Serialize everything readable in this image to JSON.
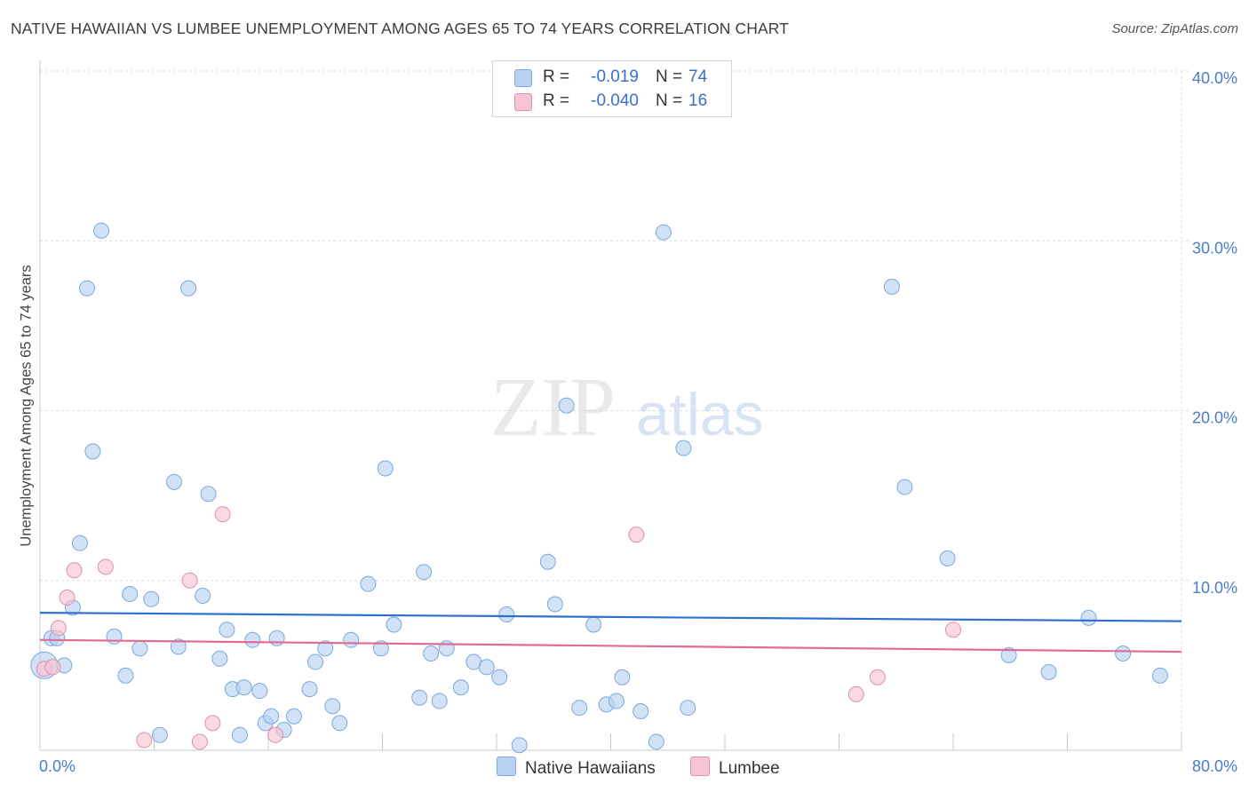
{
  "title": "NATIVE HAWAIIAN VS LUMBEE UNEMPLOYMENT AMONG AGES 65 TO 74 YEARS CORRELATION CHART",
  "source": "Source: ZipAtlas.com",
  "watermark": {
    "zip": "ZIP",
    "atlas": "atlas"
  },
  "colors": {
    "blue_fill": "#b8d2f2",
    "blue_stroke": "#7da7dd",
    "blue_line": "#2f6fcf",
    "pink_fill": "#f6c4d3",
    "pink_stroke": "#e28fab",
    "pink_line": "#e06b94",
    "grid": "#dddddd",
    "axis_text": "#4a7cc9"
  },
  "legend": {
    "rows": [
      {
        "r_label": "R =",
        "r_value": "-0.019",
        "n_label": "N =",
        "n_value": "74"
      },
      {
        "r_label": "R =",
        "r_value": "-0.040",
        "n_label": "N =",
        "n_value": "16"
      }
    ]
  },
  "bottom_legend": {
    "series1": "Native Hawaiians",
    "series2": "Lumbee"
  },
  "chart_data": {
    "type": "scatter",
    "title": "NATIVE HAWAIIAN VS LUMBEE UNEMPLOYMENT AMONG AGES 65 TO 74 YEARS CORRELATION CHART",
    "xlabel": "",
    "ylabel": "Unemployment Among Ages 65 to 74 years",
    "xlim": [
      0,
      80
    ],
    "ylim": [
      0,
      40
    ],
    "x_tick_labels": [
      "0.0%",
      "80.0%"
    ],
    "y_ticks": [
      10,
      20,
      30,
      40
    ],
    "y_tick_labels": [
      "10.0%",
      "20.0%",
      "30.0%",
      "40.0%"
    ],
    "grid": true,
    "legend_position": "top-center",
    "series": [
      {
        "name": "Native Hawaiians",
        "stats": {
          "R": -0.019,
          "N": 74
        },
        "trend": {
          "y_at_x0": 8.1,
          "y_at_x80": 7.6
        },
        "points": [
          [
            0.3,
            5.0
          ],
          [
            0.8,
            6.6
          ],
          [
            1.2,
            6.6
          ],
          [
            1.7,
            5.0
          ],
          [
            2.3,
            8.4
          ],
          [
            2.8,
            12.2
          ],
          [
            3.3,
            27.2
          ],
          [
            3.7,
            17.6
          ],
          [
            4.3,
            30.6
          ],
          [
            5.2,
            6.7
          ],
          [
            6.0,
            4.4
          ],
          [
            6.3,
            9.2
          ],
          [
            7.0,
            6.0
          ],
          [
            7.8,
            8.9
          ],
          [
            8.4,
            0.9
          ],
          [
            9.4,
            15.8
          ],
          [
            9.7,
            6.1
          ],
          [
            10.4,
            27.2
          ],
          [
            11.4,
            9.1
          ],
          [
            11.8,
            15.1
          ],
          [
            12.6,
            5.4
          ],
          [
            13.1,
            7.1
          ],
          [
            13.5,
            3.6
          ],
          [
            14.0,
            0.9
          ],
          [
            14.3,
            3.7
          ],
          [
            14.9,
            6.5
          ],
          [
            15.4,
            3.5
          ],
          [
            15.8,
            1.6
          ],
          [
            16.2,
            2.0
          ],
          [
            16.6,
            6.6
          ],
          [
            17.1,
            1.2
          ],
          [
            17.8,
            2.0
          ],
          [
            18.9,
            3.6
          ],
          [
            19.3,
            5.2
          ],
          [
            20.0,
            6.0
          ],
          [
            20.5,
            2.6
          ],
          [
            21.0,
            1.6
          ],
          [
            21.8,
            6.5
          ],
          [
            23.0,
            9.8
          ],
          [
            23.9,
            6.0
          ],
          [
            24.2,
            16.6
          ],
          [
            24.8,
            7.4
          ],
          [
            26.6,
            3.1
          ],
          [
            26.9,
            10.5
          ],
          [
            27.4,
            5.7
          ],
          [
            28.0,
            2.9
          ],
          [
            28.5,
            6.0
          ],
          [
            29.5,
            3.7
          ],
          [
            30.4,
            5.2
          ],
          [
            31.3,
            4.9
          ],
          [
            32.2,
            4.3
          ],
          [
            32.7,
            8.0
          ],
          [
            33.6,
            0.3
          ],
          [
            35.6,
            11.1
          ],
          [
            36.1,
            8.6
          ],
          [
            36.9,
            20.3
          ],
          [
            37.8,
            2.5
          ],
          [
            38.8,
            7.4
          ],
          [
            39.7,
            2.7
          ],
          [
            40.4,
            2.9
          ],
          [
            40.8,
            4.3
          ],
          [
            42.1,
            2.3
          ],
          [
            43.2,
            0.5
          ],
          [
            43.7,
            30.5
          ],
          [
            45.1,
            17.8
          ],
          [
            45.4,
            2.5
          ],
          [
            59.7,
            27.3
          ],
          [
            60.6,
            15.5
          ],
          [
            63.6,
            11.3
          ],
          [
            67.9,
            5.6
          ],
          [
            70.7,
            4.6
          ],
          [
            73.5,
            7.8
          ],
          [
            75.9,
            5.7
          ],
          [
            78.5,
            4.4
          ]
        ]
      },
      {
        "name": "Lumbee",
        "stats": {
          "R": -0.04,
          "N": 16
        },
        "trend": {
          "y_at_x0": 6.5,
          "y_at_x80": 5.8
        },
        "points": [
          [
            0.3,
            4.8
          ],
          [
            0.9,
            4.9
          ],
          [
            1.3,
            7.2
          ],
          [
            1.9,
            9.0
          ],
          [
            2.4,
            10.6
          ],
          [
            4.6,
            10.8
          ],
          [
            7.3,
            0.6
          ],
          [
            10.5,
            10.0
          ],
          [
            11.2,
            0.5
          ],
          [
            12.1,
            1.6
          ],
          [
            12.8,
            13.9
          ],
          [
            16.5,
            0.9
          ],
          [
            41.8,
            12.7
          ],
          [
            57.2,
            3.3
          ],
          [
            58.7,
            4.3
          ],
          [
            64.0,
            7.1
          ]
        ]
      }
    ]
  }
}
